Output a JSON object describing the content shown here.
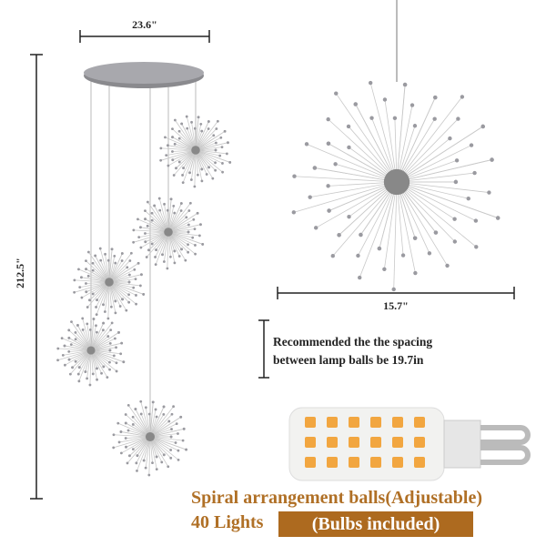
{
  "dimensions": {
    "canopy_width": "23.6\"",
    "total_height": "212.5\"",
    "ball_diameter": "15.7\""
  },
  "note": {
    "line1": "Recommended the the spacing",
    "line2": "between lamp balls be 19.7in"
  },
  "footer": {
    "line1": "Spiral arrangement balls(Adjustable)",
    "lights": "40 Lights",
    "bulbs": "(Bulbs included)"
  }
}
